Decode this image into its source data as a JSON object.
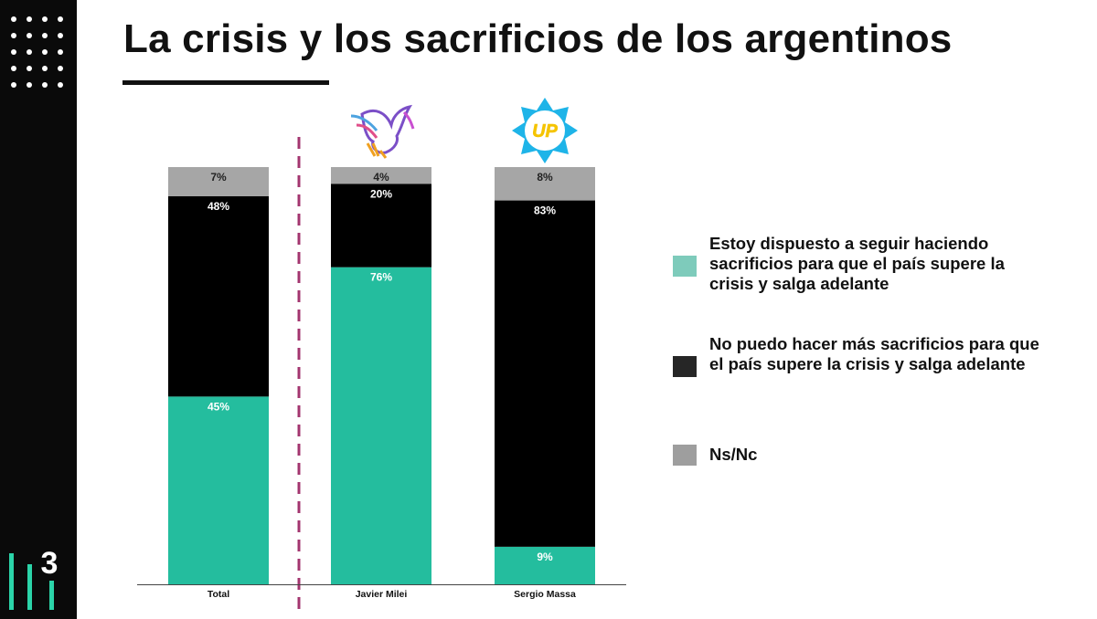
{
  "page": {
    "title": "La crisis y los sacrificios de los argentinos",
    "brand_mark": "3"
  },
  "colors": {
    "sidebar": "#0a0a0a",
    "dispuesto": "#24bd9e",
    "no_puedo": "#000000",
    "nsnc": "#a6a6a6",
    "divider": "#a3356f",
    "legend_dispuesto": "#7ecbbb",
    "legend_no_puedo": "#262626",
    "legend_nsnc": "#9e9e9e"
  },
  "icons": {
    "header_menu": "dots-grid-icon",
    "milei": "eagle-logo-icon",
    "massa": "up-badge-icon",
    "up_text": "UP"
  },
  "chart_data": {
    "type": "bar",
    "stacked": true,
    "categories": [
      "Total",
      "Javier Milei",
      "Sergio Massa"
    ],
    "series": [
      {
        "name": "Estoy dispuesto a seguir haciendo sacrificios para que el país supere la crisis y salga adelante",
        "values": [
          45,
          76,
          9
        ],
        "labels": [
          "45%",
          "76%",
          "9%"
        ]
      },
      {
        "name": "No puedo hacer más sacrificios para que el país supere la crisis y salga adelante",
        "values": [
          48,
          20,
          83
        ],
        "labels": [
          "48%",
          "20%",
          "83%"
        ]
      },
      {
        "name": "Ns/Nc",
        "values": [
          7,
          4,
          8
        ],
        "labels": [
          "7%",
          "4%",
          "8%"
        ]
      }
    ],
    "ylim": [
      0,
      100
    ],
    "grid": false,
    "legend_position": "right"
  }
}
